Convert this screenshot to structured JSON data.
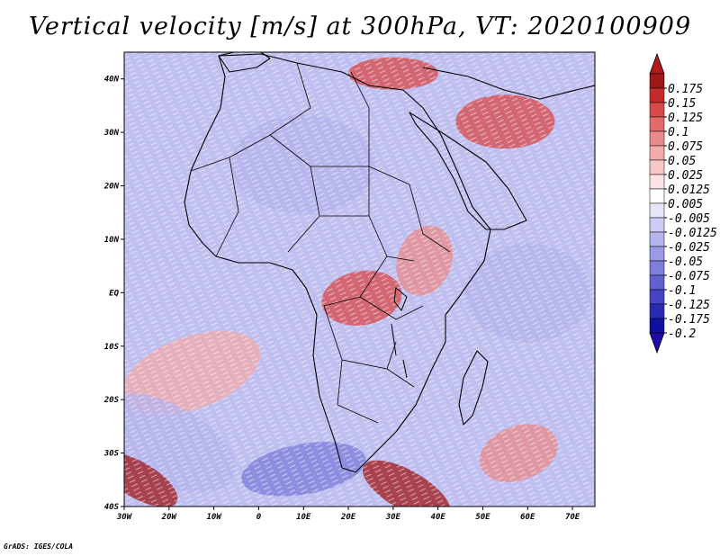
{
  "title": "Vertical velocity [m/s] at 300hPa, VT: 2020100909",
  "credit": "GrADS: IGES/COLA",
  "map": {
    "lon_range": [
      -30,
      75
    ],
    "lat_range": [
      -40,
      45
    ],
    "x_ticks": [
      {
        "lon": -30,
        "label": "30W"
      },
      {
        "lon": -20,
        "label": "20W"
      },
      {
        "lon": -10,
        "label": "10W"
      },
      {
        "lon": 0,
        "label": "0"
      },
      {
        "lon": 10,
        "label": "10E"
      },
      {
        "lon": 20,
        "label": "20E"
      },
      {
        "lon": 30,
        "label": "30E"
      },
      {
        "lon": 40,
        "label": "40E"
      },
      {
        "lon": 50,
        "label": "50E"
      },
      {
        "lon": 60,
        "label": "60E"
      },
      {
        "lon": 70,
        "label": "70E"
      }
    ],
    "y_ticks": [
      {
        "lat": 40,
        "label": "40N"
      },
      {
        "lat": 30,
        "label": "30N"
      },
      {
        "lat": 20,
        "label": "20N"
      },
      {
        "lat": 10,
        "label": "10N"
      },
      {
        "lat": 0,
        "label": "EQ"
      },
      {
        "lat": -10,
        "label": "10S"
      },
      {
        "lat": -20,
        "label": "20S"
      },
      {
        "lat": -30,
        "label": "30S"
      },
      {
        "lat": -40,
        "label": "40S"
      }
    ]
  },
  "colorbar": {
    "labels": [
      "0.175",
      "0.15",
      "0.125",
      "0.1",
      "0.075",
      "0.05",
      "0.025",
      "0.0125",
      "0.005",
      "-0.005",
      "-0.0125",
      "-0.025",
      "-0.05",
      "-0.075",
      "-0.1",
      "-0.125",
      "-0.175",
      "-0.2"
    ],
    "colors": [
      "#a01818",
      "#c42a2a",
      "#d84a4a",
      "#e26a6a",
      "#ea8a8a",
      "#f2aaaa",
      "#f8c8c8",
      "#fce2e2",
      "#ffffff",
      "#e6e6fa",
      "#ccccf4",
      "#b4b4ee",
      "#9a9ae6",
      "#7e7edc",
      "#6060d0",
      "#4444c4",
      "#2a2ab4",
      "#1010a0"
    ],
    "top_color": "#b01c1c",
    "bottom_color": "#1e0aa6"
  },
  "regions": [
    {
      "name": "central-africa-ascent",
      "lon": 23,
      "lat": -1,
      "value": 0.1
    },
    {
      "name": "east-africa-ascent",
      "lon": 37,
      "lat": 6,
      "value": 0.05
    },
    {
      "name": "mediterranean-ascent",
      "lon": 30,
      "lat": 41,
      "value": 0.1
    },
    {
      "name": "sahara-descent",
      "lon": 10,
      "lat": 24,
      "value": -0.05
    },
    {
      "name": "south-atlantic-ascent",
      "lon": -15,
      "lat": -15,
      "value": 0.04
    },
    {
      "name": "south-atlantic-descent",
      "lon": -22,
      "lat": -28,
      "value": -0.05
    },
    {
      "name": "south-africa-descent",
      "lon": 10,
      "lat": -33,
      "value": -0.1
    },
    {
      "name": "agulhas-ascent",
      "lon": 33,
      "lat": -37,
      "value": 0.15
    },
    {
      "name": "indian-ocean-ascent",
      "lon": 58,
      "lat": -30,
      "value": 0.05
    },
    {
      "name": "southwest-atlantic-ascent",
      "lon": -27,
      "lat": -35,
      "value": 0.15
    },
    {
      "name": "arabia-ascent",
      "lon": 55,
      "lat": 32,
      "value": 0.1
    },
    {
      "name": "indian-ocean-descent",
      "lon": 60,
      "lat": 0,
      "value": -0.04
    }
  ]
}
